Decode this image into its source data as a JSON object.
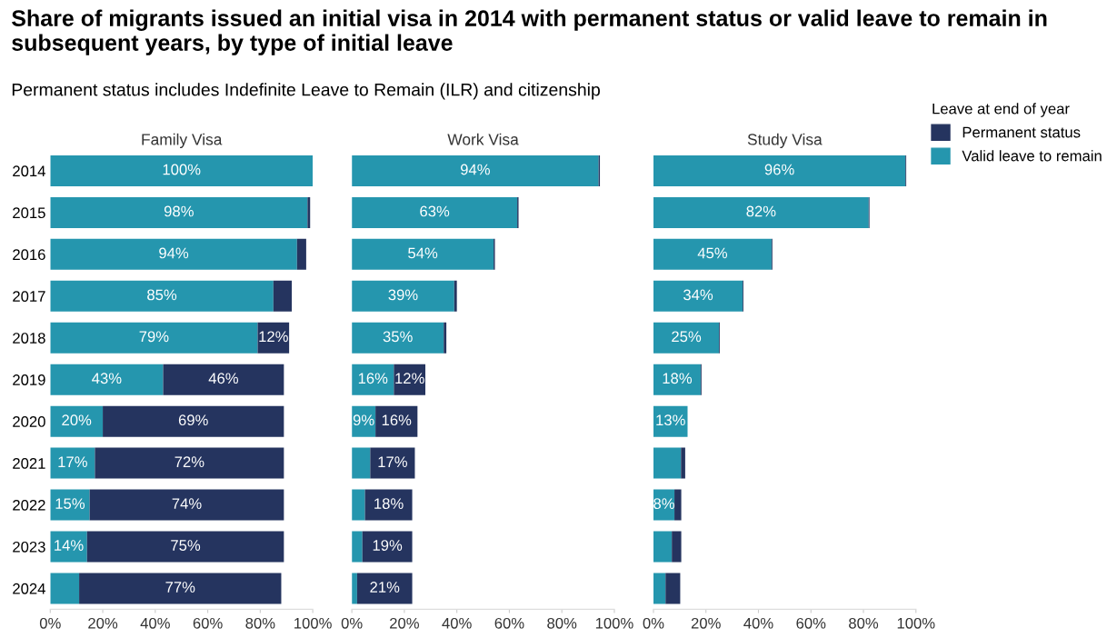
{
  "chart_data": [
    {
      "type": "bar",
      "orientation": "horizontal",
      "stacked": true,
      "legend": "top right",
      "legend_title": "Leave at end of year",
      "title": "Share of migrants issued an initial visa in 2014 with permanent status or valid leave to remain in subsequent years, by type of initial leave",
      "subtitle": "Permanent status includes Indefinite Leave to Remain (ILR) and citizenship",
      "xlabel": "Family Visa",
      "categories": [
        "2014",
        "2015",
        "2016",
        "2017",
        "2018",
        "2019",
        "2020",
        "2021",
        "2022",
        "2023",
        "2024"
      ],
      "xlim": [
        0,
        100
      ],
      "xticks": [
        {
          "value": 0,
          "label": "0%"
        },
        {
          "value": 20,
          "label": "20%"
        },
        {
          "value": 40,
          "label": "40%"
        },
        {
          "value": 60,
          "label": "60%"
        },
        {
          "value": 80,
          "label": "80%"
        },
        {
          "value": 100,
          "label": "100%"
        }
      ],
      "series": [
        {
          "name": "Valid leave to remain",
          "color": "#2596ae",
          "values": [
            100,
            98,
            94,
            85,
            79,
            43,
            20,
            17,
            15,
            14,
            11
          ],
          "value_labels": [
            "100%",
            "98%",
            "94%",
            "85%",
            "79%",
            "43%",
            "20%",
            "17%",
            "15%",
            "14%",
            null
          ]
        },
        {
          "name": "Permanent status",
          "color": "#25345f",
          "values": [
            null,
            1,
            3.5,
            7,
            12,
            46,
            69,
            72,
            74,
            75,
            77
          ],
          "value_labels": [
            null,
            null,
            null,
            null,
            "12%",
            "46%",
            "69%",
            "72%",
            "74%",
            "75%",
            "77%"
          ]
        }
      ]
    },
    {
      "type": "bar",
      "orientation": "horizontal",
      "stacked": true,
      "xlabel": "Work Visa",
      "tick_labels": "x",
      "categories": [
        "2014",
        "2015",
        "2016",
        "2017",
        "2018",
        "2019",
        "2020",
        "2021",
        "2022",
        "2023",
        "2024"
      ],
      "xlim": [
        0,
        100
      ],
      "xticks": [
        {
          "value": 0,
          "label": "0%"
        },
        {
          "value": 20,
          "label": "20%"
        },
        {
          "value": 40,
          "label": "40%"
        },
        {
          "value": 60,
          "label": "60%"
        },
        {
          "value": 80,
          "label": "80%"
        },
        {
          "value": 100,
          "label": "100%"
        }
      ],
      "series": [
        {
          "name": "Valid leave to remain",
          "color": "#2596ae",
          "values": [
            94,
            63,
            54,
            39,
            35,
            16,
            9,
            7,
            5,
            4,
            2
          ],
          "value_labels": [
            "94%",
            "63%",
            "54%",
            "39%",
            "35%",
            "16%",
            "9%",
            null,
            null,
            null,
            null
          ]
        },
        {
          "name": "Permanent status",
          "color": "#25345f",
          "values": [
            0.5,
            0.5,
            0.5,
            1,
            1,
            12,
            16,
            17,
            18,
            19,
            21
          ],
          "value_labels": [
            null,
            null,
            null,
            null,
            null,
            "12%",
            "16%",
            "17%",
            "18%",
            "19%",
            "21%"
          ]
        }
      ]
    },
    {
      "type": "bar",
      "orientation": "horizontal",
      "stacked": true,
      "xlabel": "Study Visa",
      "tick_labels": "x",
      "categories": [
        "2014",
        "2015",
        "2016",
        "2017",
        "2018",
        "2019",
        "2020",
        "2021",
        "2022",
        "2023",
        "2024"
      ],
      "xlim": [
        0,
        100
      ],
      "xticks": [
        {
          "value": 0,
          "label": "0%"
        },
        {
          "value": 20,
          "label": "20%"
        },
        {
          "value": 40,
          "label": "40%"
        },
        {
          "value": 60,
          "label": "60%"
        },
        {
          "value": 80,
          "label": "80%"
        },
        {
          "value": 100,
          "label": "100%"
        }
      ],
      "series": [
        {
          "name": "Valid leave to remain",
          "color": "#2596ae",
          "values": [
            96,
            82,
            45,
            34,
            25,
            18,
            13,
            10.5,
            8,
            7,
            4.6
          ],
          "value_labels": [
            "96%",
            "82%",
            "45%",
            "34%",
            "25%",
            "18%",
            "13%",
            null,
            "8%",
            null,
            null
          ]
        },
        {
          "name": "Permanent status",
          "color": "#25345f",
          "values": [
            0.3,
            0.3,
            0.3,
            0.3,
            0.3,
            0.3,
            null,
            1.6,
            2.6,
            3.6,
            5.6
          ],
          "value_labels": [
            null,
            null,
            null,
            null,
            null,
            null,
            null,
            null,
            null,
            null,
            null
          ]
        }
      ]
    }
  ]
}
